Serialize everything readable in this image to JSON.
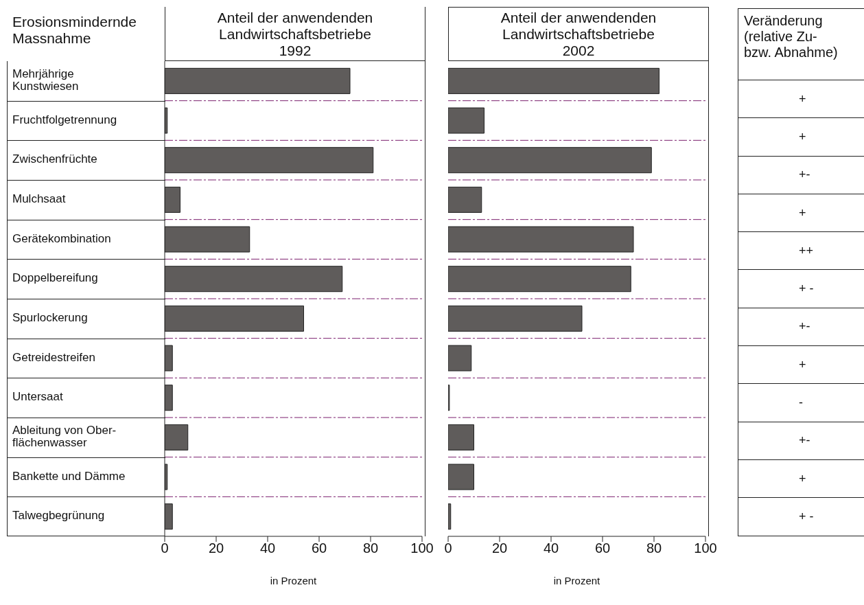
{
  "chart_data": [
    {
      "type": "bar",
      "orientation": "horizontal",
      "title": "Anteil der anwendenden\nLandwirtschaftsbetriebe\n1992",
      "ylabel": "Erosionsmindernde\nMassnahme",
      "xlabel": "in Prozent",
      "categories": [
        "Mehrjährige\nKunstwiesen",
        "Fruchtfolgetrennung",
        "Zwischenfrüchte",
        "Mulchsaat",
        "Gerätekombination",
        "Doppelbereifung",
        "Spurlockerung",
        "Getreidestreifen",
        "Untersaat",
        "Ableitung von Ober-\nflächenwasser",
        "Bankette und Dämme",
        "Talwegbegrünung"
      ],
      "values": [
        72,
        1,
        81,
        6,
        33,
        69,
        54,
        3,
        3,
        9,
        1,
        3
      ],
      "color": "#5f5c5b",
      "xlim": [
        0,
        100
      ],
      "xticks": [
        0,
        20,
        40,
        60,
        80,
        100
      ],
      "grid": "y"
    },
    {
      "type": "bar",
      "orientation": "horizontal",
      "title": "Anteil der anwendenden\nLandwirtschaftsbetriebe\n2002",
      "xlabel": "in Prozent",
      "categories": [
        null,
        null,
        null,
        null,
        null,
        null,
        null,
        null,
        null,
        null,
        null,
        null
      ],
      "values": [
        82,
        14,
        79,
        13,
        72,
        71,
        52,
        9,
        0.5,
        10,
        10,
        1
      ],
      "color": "#5f5c5b",
      "xlim": [
        0,
        100
      ],
      "xticks": [
        0,
        20,
        40,
        60,
        80,
        100
      ],
      "grid": "y",
      "tick_labels": "x"
    },
    {
      "type": "other",
      "title": "Veränderung\n(relative Zu-\nbzw. Abnahme)",
      "annotations": [
        "+",
        "+",
        "+-",
        "+",
        "++",
        "+ -",
        "+-",
        "+",
        "-",
        "+-",
        "+",
        "+ -"
      ]
    }
  ]
}
